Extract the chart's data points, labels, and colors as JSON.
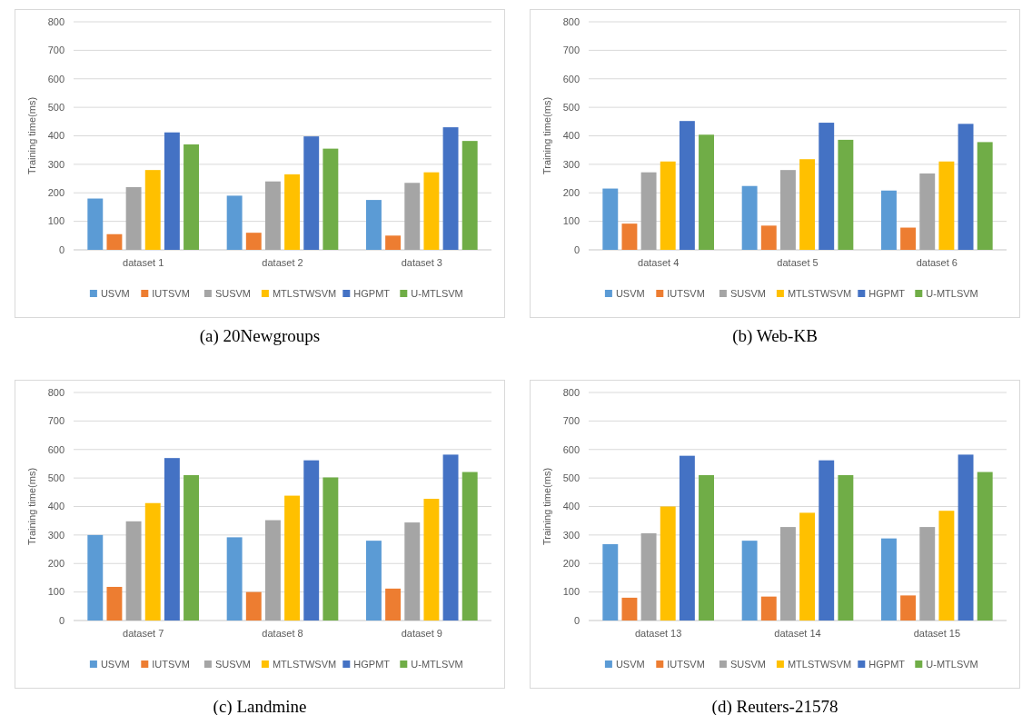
{
  "chart_data": [
    {
      "type": "bar",
      "title": "(a) 20Newgroups",
      "ylabel": "Training time(ms)",
      "categories": [
        "dataset 1",
        "dataset 2",
        "dataset 3"
      ],
      "ylim": [
        0,
        800
      ],
      "yticks": [
        0,
        100,
        200,
        300,
        400,
        500,
        600,
        700,
        800
      ],
      "grid": "y",
      "legend": "bottom",
      "series": [
        {
          "name": "USVM",
          "color": "#5b9bd5",
          "values": [
            180,
            190,
            175
          ]
        },
        {
          "name": "IUTSVM",
          "color": "#ed7d31",
          "values": [
            55,
            60,
            50
          ]
        },
        {
          "name": "SUSVM",
          "color": "#a5a5a5",
          "values": [
            220,
            240,
            235
          ]
        },
        {
          "name": "MTLSTWSVM",
          "color": "#ffc000",
          "values": [
            280,
            265,
            272
          ]
        },
        {
          "name": "HGPMT",
          "color": "#4472c4",
          "values": [
            412,
            398,
            430
          ]
        },
        {
          "name": "U-MTLSVM",
          "color": "#70ad47",
          "values": [
            370,
            355,
            382
          ]
        }
      ]
    },
    {
      "type": "bar",
      "title": "(b) Web-KB",
      "ylabel": "Training time(ms)",
      "categories": [
        "dataset 4",
        "dataset 5",
        "dataset 6"
      ],
      "ylim": [
        0,
        800
      ],
      "yticks": [
        0,
        100,
        200,
        300,
        400,
        500,
        600,
        700,
        800
      ],
      "grid": "y",
      "legend": "bottom",
      "series": [
        {
          "name": "USVM",
          "color": "#5b9bd5",
          "values": [
            215,
            224,
            208
          ]
        },
        {
          "name": "IUTSVM",
          "color": "#ed7d31",
          "values": [
            92,
            85,
            78
          ]
        },
        {
          "name": "SUSVM",
          "color": "#a5a5a5",
          "values": [
            272,
            280,
            268
          ]
        },
        {
          "name": "MTLSTWSVM",
          "color": "#ffc000",
          "values": [
            310,
            318,
            310
          ]
        },
        {
          "name": "HGPMT",
          "color": "#4472c4",
          "values": [
            452,
            446,
            442
          ]
        },
        {
          "name": "U-MTLSVM",
          "color": "#70ad47",
          "values": [
            404,
            386,
            378
          ]
        }
      ]
    },
    {
      "type": "bar",
      "title": "(c) Landmine",
      "ylabel": "Training time(ms)",
      "categories": [
        "dataset 7",
        "dataset 8",
        "dataset 9"
      ],
      "ylim": [
        0,
        800
      ],
      "yticks": [
        0,
        100,
        200,
        300,
        400,
        500,
        600,
        700,
        800
      ],
      "grid": "y",
      "legend": "bottom",
      "series": [
        {
          "name": "USVM",
          "color": "#5b9bd5",
          "values": [
            300,
            292,
            280
          ]
        },
        {
          "name": "IUTSVM",
          "color": "#ed7d31",
          "values": [
            118,
            100,
            112
          ]
        },
        {
          "name": "SUSVM",
          "color": "#a5a5a5",
          "values": [
            348,
            352,
            344
          ]
        },
        {
          "name": "MTLSTWSVM",
          "color": "#ffc000",
          "values": [
            412,
            438,
            427
          ]
        },
        {
          "name": "HGPMT",
          "color": "#4472c4",
          "values": [
            570,
            562,
            582
          ]
        },
        {
          "name": "U-MTLSVM",
          "color": "#70ad47",
          "values": [
            510,
            502,
            521
          ]
        }
      ]
    },
    {
      "type": "bar",
      "title": "(d) Reuters-21578",
      "ylabel": "Training time(ms)",
      "categories": [
        "dataset 13",
        "dataset 14",
        "dataset 15"
      ],
      "ylim": [
        0,
        800
      ],
      "yticks": [
        0,
        100,
        200,
        300,
        400,
        500,
        600,
        700,
        800
      ],
      "grid": "y",
      "legend": "bottom",
      "series": [
        {
          "name": "USVM",
          "color": "#5b9bd5",
          "values": [
            268,
            280,
            288
          ]
        },
        {
          "name": "IUTSVM",
          "color": "#ed7d31",
          "values": [
            80,
            84,
            88
          ]
        },
        {
          "name": "SUSVM",
          "color": "#a5a5a5",
          "values": [
            306,
            328,
            328
          ]
        },
        {
          "name": "MTLSTWSVM",
          "color": "#ffc000",
          "values": [
            400,
            378,
            385
          ]
        },
        {
          "name": "HGPMT",
          "color": "#4472c4",
          "values": [
            578,
            562,
            582
          ]
        },
        {
          "name": "U-MTLSVM",
          "color": "#70ad47",
          "values": [
            510,
            510,
            521
          ]
        }
      ]
    }
  ]
}
